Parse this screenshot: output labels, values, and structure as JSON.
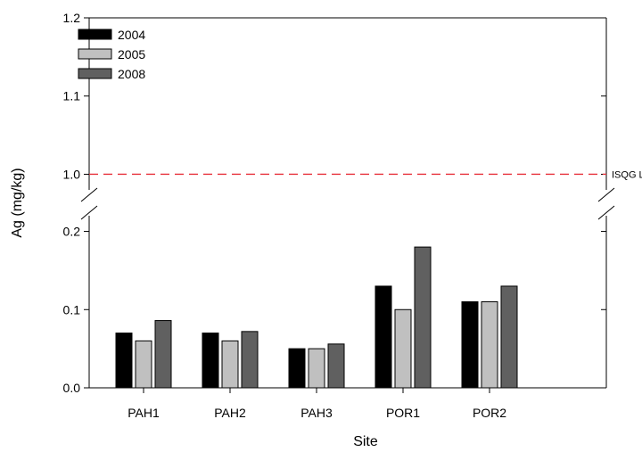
{
  "chart_data": {
    "type": "bar",
    "xlabel": "Site",
    "ylabel": "Ag (mg/kg)",
    "categories": [
      "PAH1",
      "PAH2",
      "PAH3",
      "POR1",
      "POR2"
    ],
    "series": [
      {
        "name": "2004",
        "color": "#000000",
        "values": [
          0.07,
          0.07,
          0.05,
          0.13,
          0.11
        ]
      },
      {
        "name": "2005",
        "color": "#c0c0c0",
        "values": [
          0.06,
          0.06,
          0.05,
          0.1,
          0.11
        ]
      },
      {
        "name": "2008",
        "color": "#606060",
        "values": [
          0.086,
          0.072,
          0.056,
          0.18,
          0.13
        ]
      }
    ],
    "y_axis_broken": true,
    "y_lower_segment": {
      "range": [
        0.0,
        0.22
      ],
      "ticks": [
        "0.0",
        "0.1",
        "0.2"
      ]
    },
    "y_upper_segment": {
      "range": [
        0.98,
        1.2
      ],
      "ticks": [
        "1.0",
        "1.1",
        "1.2"
      ]
    },
    "reference_line": {
      "label": "ISQG Low",
      "value": 1.0,
      "color": "#e8303a",
      "style": "dashed"
    },
    "legend_position": "top-left",
    "grid": false
  }
}
